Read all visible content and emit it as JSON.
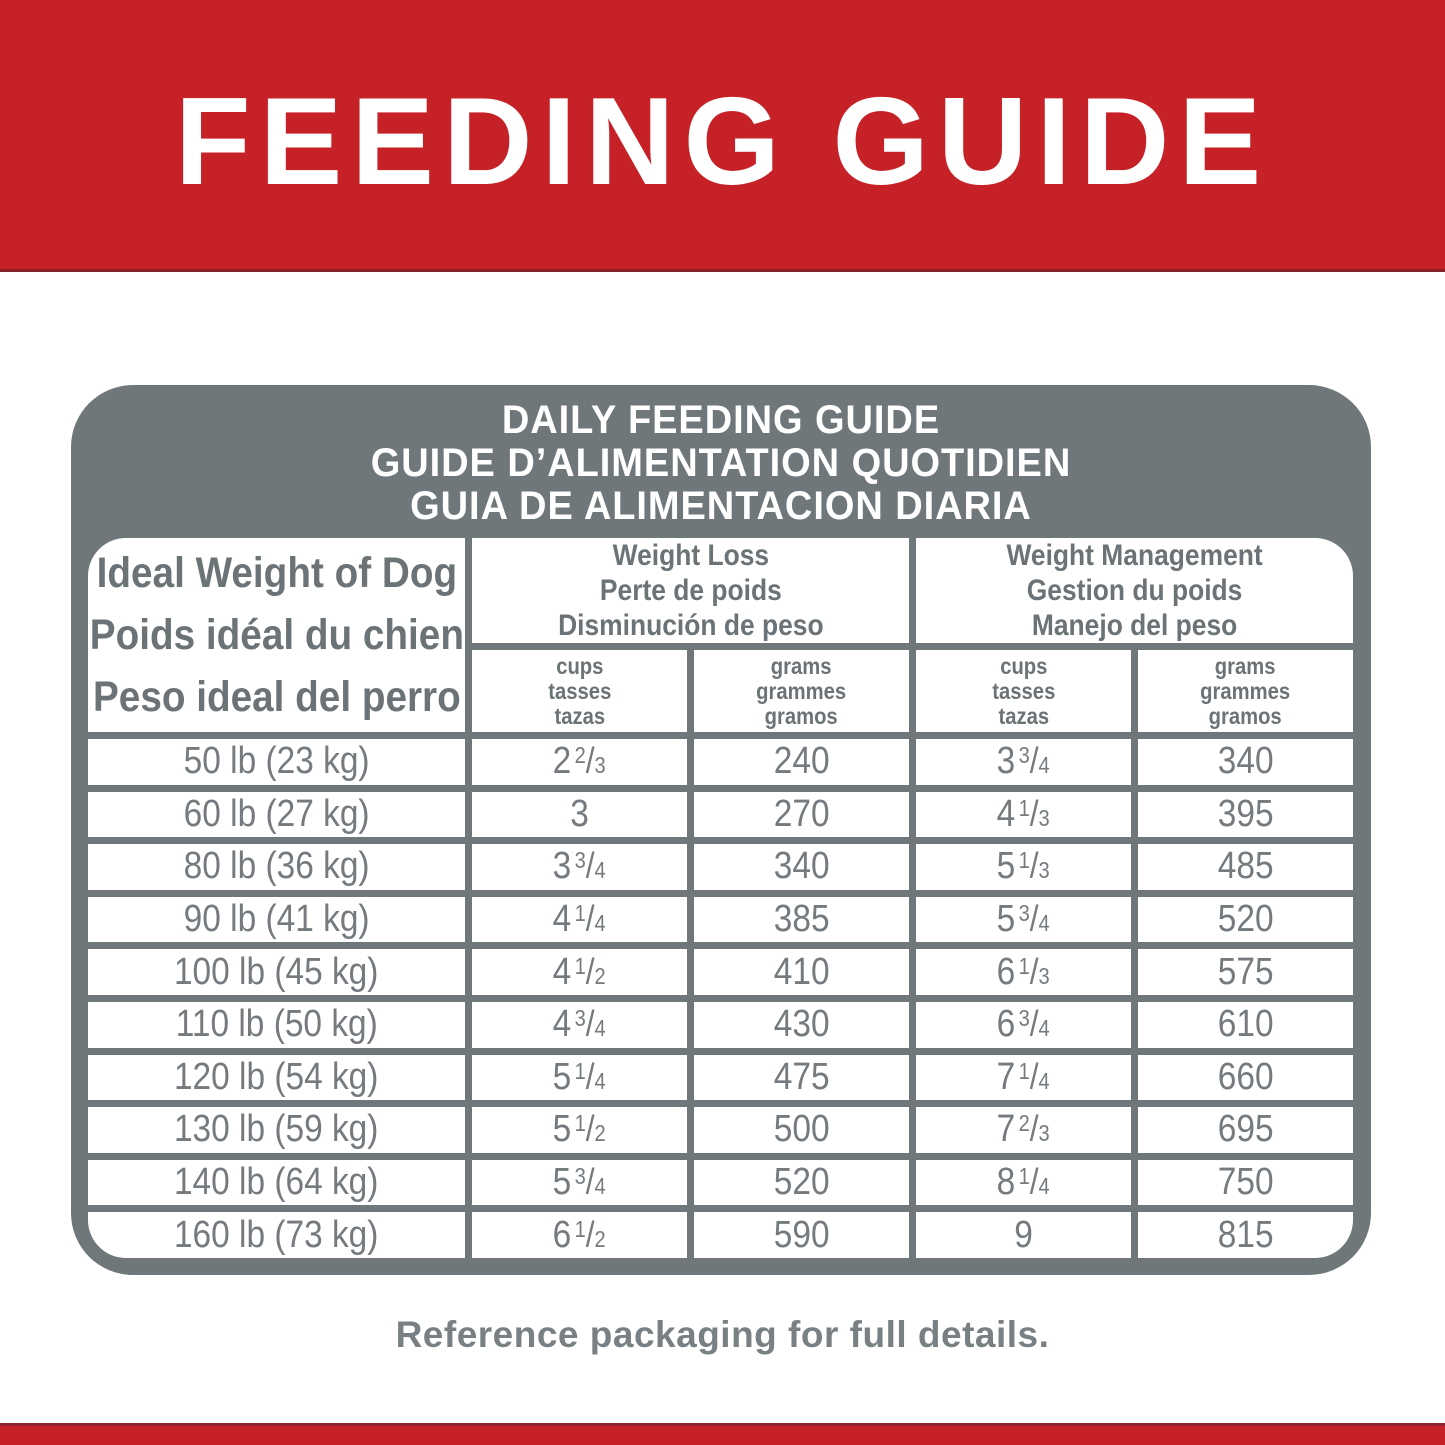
{
  "colors": {
    "red": "#C62127",
    "panel_gray": "#6F777B",
    "header_text_gray": "#6C7377",
    "data_text_gray": "#747A7E",
    "footer_text_gray": "#798084",
    "white": "#FFFFFF"
  },
  "banner": {
    "title": "FEEDING GUIDE"
  },
  "panel": {
    "title_lines": [
      "DAILY FEEDING GUIDE",
      "GUIDE D’ALIMENTATION QUOTIDIEN",
      "GUIA DE ALIMENTACION DIARIA"
    ]
  },
  "table": {
    "row_header_lines": [
      "Ideal Weight of Dog",
      "Poids idéal du chien",
      "Peso ideal del perro"
    ],
    "group_headers": [
      {
        "lines": [
          "Weight Loss",
          "Perte de poids",
          "Disminución de peso"
        ]
      },
      {
        "lines": [
          "Weight Management",
          "Gestion du poids",
          "Manejo del peso"
        ]
      }
    ],
    "unit_headers": {
      "cups_lines": [
        "cups",
        "tasses",
        "tazas"
      ],
      "grams_lines": [
        "grams",
        "grammes",
        "gramos"
      ]
    },
    "rows": [
      {
        "weight": "50 lb (23 kg)",
        "wl_cups": "2 2/3",
        "wl_grams": "240",
        "wm_cups": "3 3/4",
        "wm_grams": "340"
      },
      {
        "weight": "60 lb (27 kg)",
        "wl_cups": "3",
        "wl_grams": "270",
        "wm_cups": "4 1/3",
        "wm_grams": "395"
      },
      {
        "weight": "80 lb (36 kg)",
        "wl_cups": "3 3/4",
        "wl_grams": "340",
        "wm_cups": "5 1/3",
        "wm_grams": "485"
      },
      {
        "weight": "90 lb (41 kg)",
        "wl_cups": "4 1/4",
        "wl_grams": "385",
        "wm_cups": "5 3/4",
        "wm_grams": "520"
      },
      {
        "weight": "100 lb (45 kg)",
        "wl_cups": "4 1/2",
        "wl_grams": "410",
        "wm_cups": "6 1/3",
        "wm_grams": "575"
      },
      {
        "weight": "110 lb (50 kg)",
        "wl_cups": "4 3/4",
        "wl_grams": "430",
        "wm_cups": "6 3/4",
        "wm_grams": "610"
      },
      {
        "weight": "120 lb (54 kg)",
        "wl_cups": "5 1/4",
        "wl_grams": "475",
        "wm_cups": "7 1/4",
        "wm_grams": "660"
      },
      {
        "weight": "130 lb (59 kg)",
        "wl_cups": "5 1/2",
        "wl_grams": "500",
        "wm_cups": "7 2/3",
        "wm_grams": "695"
      },
      {
        "weight": "140 lb (64 kg)",
        "wl_cups": "5 3/4",
        "wl_grams": "520",
        "wm_cups": "8 1/4",
        "wm_grams": "750"
      },
      {
        "weight": "160 lb (73 kg)",
        "wl_cups": "6 1/2",
        "wl_grams": "590",
        "wm_cups": "9",
        "wm_grams": "815"
      }
    ]
  },
  "footer": {
    "note": "Reference packaging for full details."
  }
}
